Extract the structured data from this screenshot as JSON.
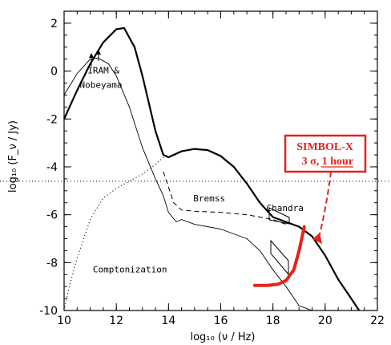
{
  "chart_data": {
    "type": "line",
    "xlabel": "log₁₀ (ν / Hz)",
    "ylabel": "log₁₀ (F_ν / Jy)",
    "xlim": [
      10,
      22
    ],
    "ylim": [
      -10,
      2.5
    ],
    "xticks": [
      10,
      12,
      14,
      16,
      18,
      20,
      22
    ],
    "yticks": [
      -10,
      -8,
      -6,
      -4,
      -2,
      0,
      2
    ],
    "series": [
      {
        "name": "",
        "style": "thick-solid",
        "x": [
          10.0,
          10.5,
          11.0,
          11.5,
          12.0,
          12.3,
          12.7,
          13.0,
          13.5,
          13.8,
          14.0,
          14.5,
          15.0,
          15.5,
          16.0,
          16.5,
          17.0,
          17.5,
          18.0,
          18.5,
          19.0,
          19.5,
          20.0,
          20.5,
          21.0,
          21.3
        ],
        "y": [
          -2.0,
          -0.8,
          0.3,
          1.2,
          1.75,
          1.8,
          1.0,
          -0.2,
          -2.5,
          -3.5,
          -3.6,
          -3.35,
          -3.25,
          -3.3,
          -3.55,
          -4.0,
          -4.7,
          -5.5,
          -6.1,
          -6.3,
          -6.5,
          -6.9,
          -7.7,
          -8.7,
          -9.5,
          -10.0
        ]
      },
      {
        "name": "",
        "style": "thin-solid",
        "x": [
          10.0,
          10.5,
          11.0,
          11.3,
          11.7,
          12.0,
          12.5,
          13.0,
          13.5,
          13.8,
          14.0,
          14.3,
          14.5,
          15.0,
          16.0,
          17.0,
          17.5,
          18.0,
          18.5,
          19.0,
          19.5
        ],
        "y": [
          -1.0,
          -0.1,
          0.5,
          0.55,
          0.3,
          -0.2,
          -1.5,
          -3.2,
          -4.5,
          -5.2,
          -5.9,
          -6.3,
          -6.2,
          -6.4,
          -6.6,
          -7.0,
          -7.5,
          -8.3,
          -9.0,
          -9.8,
          -10.0
        ]
      },
      {
        "name": "Bremss",
        "style": "dashed",
        "x": [
          13.8,
          14.2,
          14.5,
          15.0,
          16.0,
          17.0,
          17.5,
          18.0,
          18.5
        ],
        "y": [
          -4.2,
          -5.5,
          -5.8,
          -5.85,
          -5.9,
          -6.0,
          -6.1,
          -6.2,
          -6.4
        ]
      },
      {
        "name": "Comptonization",
        "style": "dotted",
        "x": [
          10.0,
          10.2,
          10.5,
          11.0,
          11.5,
          12.0,
          12.5,
          13.0,
          13.5,
          13.8
        ],
        "y": [
          -10.0,
          -9.0,
          -7.8,
          -6.2,
          -5.3,
          -4.9,
          -4.6,
          -4.3,
          -3.9,
          -3.6
        ]
      }
    ],
    "reference_line": {
      "y": -4.6,
      "style": "dotted"
    },
    "sensitivity_curve": {
      "style": "thick-red",
      "color": "#e5231b",
      "x": [
        17.3,
        17.8,
        18.2,
        18.5,
        18.8,
        19.0,
        19.2
      ],
      "y": [
        -8.95,
        -8.95,
        -8.9,
        -8.75,
        -8.3,
        -7.5,
        -6.5
      ]
    },
    "callout": {
      "text": [
        "SIMBOL-X",
        "3 σ, 1 hour"
      ]
    },
    "annotations": [
      {
        "text": "IRAM &",
        "x": 10.9,
        "y": -0.1
      },
      {
        "text": "Nobeyama",
        "x": 10.6,
        "y": -0.7
      },
      {
        "text": "Bremss",
        "x": 14.95,
        "y": -5.45
      },
      {
        "text": "Chandra",
        "x": 17.75,
        "y": -5.85
      },
      {
        "text": "Comptonization",
        "x": 11.1,
        "y": -8.4
      }
    ]
  }
}
